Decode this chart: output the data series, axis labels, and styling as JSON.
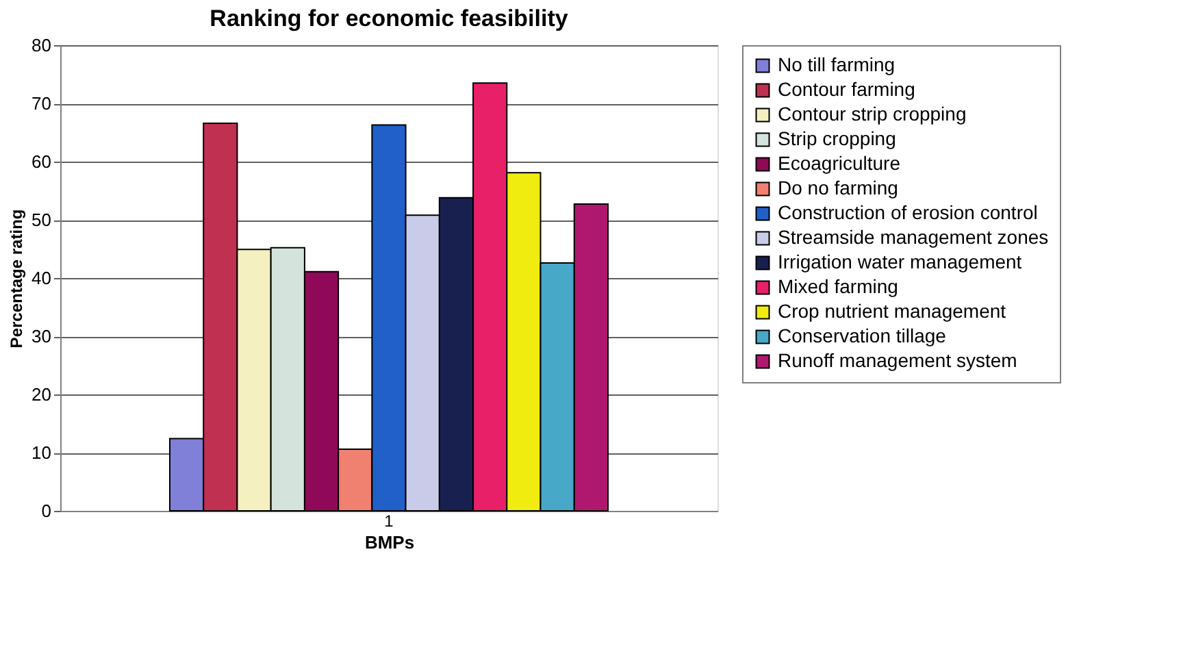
{
  "chart_data": {
    "type": "bar",
    "title": "Ranking for economic feasibility",
    "xlabel": "BMPs",
    "ylabel": "Percentage rating",
    "categories": [
      "1"
    ],
    "ylim": [
      0,
      80
    ],
    "yticks": [
      0,
      10,
      20,
      30,
      40,
      50,
      60,
      70,
      80
    ],
    "grid": "y",
    "legend": "right",
    "series": [
      {
        "name": "No till farming",
        "color": "#8080d8",
        "values": [
          12.4
        ]
      },
      {
        "name": "Contour farming",
        "color": "#c03050",
        "values": [
          66.6
        ]
      },
      {
        "name": "Contour strip cropping",
        "color": "#f4f0c0",
        "values": [
          44.9
        ]
      },
      {
        "name": "Strip cropping",
        "color": "#d4e4dc",
        "values": [
          45.2
        ]
      },
      {
        "name": "Ecoagriculture",
        "color": "#900858",
        "values": [
          41.1
        ]
      },
      {
        "name": "Do no farming",
        "color": "#f08070",
        "values": [
          10.6
        ]
      },
      {
        "name": "Construction of erosion control",
        "color": "#2060c8",
        "values": [
          66.3
        ]
      },
      {
        "name": "Streamside management zones",
        "color": "#c8cce8",
        "values": [
          50.8
        ]
      },
      {
        "name": "Irrigation water management",
        "color": "#182050",
        "values": [
          53.8
        ]
      },
      {
        "name": "Mixed farming",
        "color": "#e82068",
        "values": [
          73.5
        ]
      },
      {
        "name": "Crop nutrient management",
        "color": "#f0ec10",
        "values": [
          58.1
        ]
      },
      {
        "name": "Conservation tillage",
        "color": "#48a8c8",
        "values": [
          42.6
        ]
      },
      {
        "name": "Runoff management system",
        "color": "#b01870",
        "values": [
          52.7
        ]
      }
    ]
  }
}
